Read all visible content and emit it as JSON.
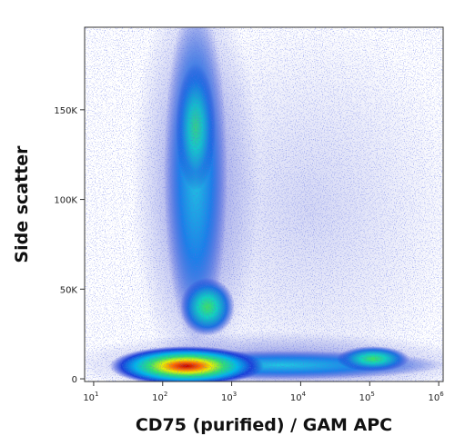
{
  "chart_data": {
    "type": "density",
    "xlabel": "CD75 (purified) / GAM APC",
    "ylabel": "Side scatter",
    "xscale": "log",
    "xlim": [
      7.4,
      1160000
    ],
    "xticks": [
      {
        "value": 10,
        "label": "10",
        "exponent": "1"
      },
      {
        "value": 100,
        "label": "10",
        "exponent": "2"
      },
      {
        "value": 1000,
        "label": "10",
        "exponent": "3"
      },
      {
        "value": 10000,
        "label": "10",
        "exponent": "4"
      },
      {
        "value": 100000,
        "label": "10",
        "exponent": "5"
      },
      {
        "value": 1000000,
        "label": "10",
        "exponent": "6"
      }
    ],
    "ylim": [
      -1500,
      196000
    ],
    "yticks": [
      0,
      {
        "value": 50000,
        "label": "50K"
      },
      {
        "value": 100000,
        "label": "100K"
      },
      {
        "value": 150000,
        "label": "150K"
      }
    ]
  }
}
